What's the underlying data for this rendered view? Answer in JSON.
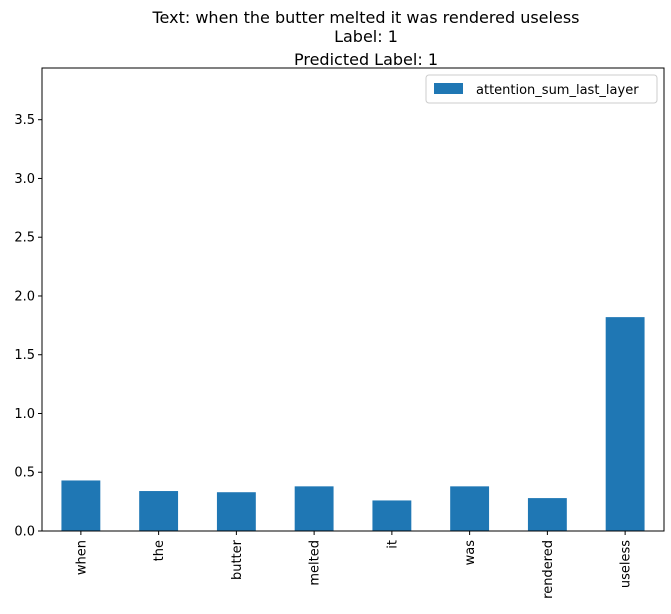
{
  "chart_data": {
    "type": "bar",
    "title_lines": [
      "Text: when the butter melted it was rendered useless",
      "Label: 1",
      "Predicted Label: 1"
    ],
    "xlabel": "",
    "ylabel": "",
    "categories": [
      "when",
      "the",
      "butter",
      "melted",
      "it",
      "was",
      "rendered",
      "useless"
    ],
    "series": [
      {
        "name": "attention_sum_last_layer",
        "values": [
          0.43,
          0.34,
          0.33,
          0.38,
          0.26,
          0.38,
          0.28,
          1.82
        ],
        "color": "#1f77b4"
      }
    ],
    "ylim": [
      0,
      3.94
    ],
    "yticks": [
      0.0,
      0.5,
      1.0,
      1.5,
      2.0,
      2.5,
      3.0,
      3.5
    ],
    "ytick_labels": [
      "0.0",
      "0.5",
      "1.0",
      "1.5",
      "2.0",
      "2.5",
      "3.0",
      "3.5"
    ],
    "grid": false,
    "legend_position": "top-right"
  }
}
